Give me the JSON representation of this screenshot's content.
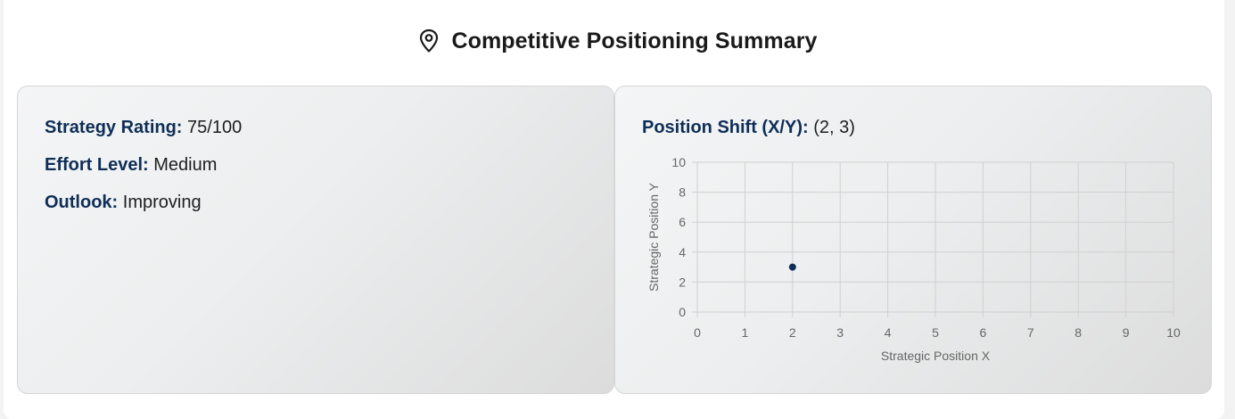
{
  "header": {
    "icon": "location-pin-icon",
    "title": "Competitive Positioning Summary"
  },
  "summary": {
    "strategy_rating_label": "Strategy Rating:",
    "strategy_rating_value": "75/100",
    "effort_level_label": "Effort Level:",
    "effort_level_value": "Medium",
    "outlook_label": "Outlook:",
    "outlook_value": "Improving"
  },
  "position_shift": {
    "label": "Position Shift (X/Y):",
    "value": "(2, 3)"
  },
  "chart_data": {
    "type": "scatter",
    "title": "",
    "xlabel": "Strategic Position X",
    "ylabel": "Strategic Position Y",
    "xlim": [
      0,
      10
    ],
    "ylim": [
      0,
      10
    ],
    "x_ticks": [
      0,
      1,
      2,
      3,
      4,
      5,
      6,
      7,
      8,
      9,
      10
    ],
    "y_ticks": [
      0,
      2,
      4,
      6,
      8,
      10
    ],
    "grid": true,
    "legend": "none",
    "point_color": "#0f2e57",
    "points": [
      {
        "x": 2,
        "y": 3
      }
    ]
  },
  "colors": {
    "label": "#0f2e57",
    "text": "#1e1e1e",
    "grid": "#d0d0d0",
    "axis_text": "#666666"
  }
}
